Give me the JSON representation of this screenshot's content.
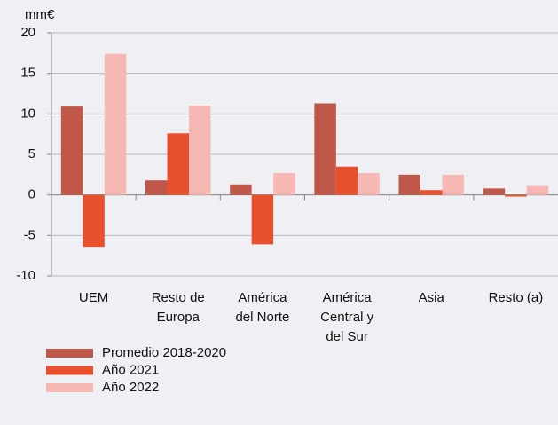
{
  "chart_data": {
    "type": "bar",
    "unit_label": "mm€",
    "categories": [
      "UEM",
      "Resto de\nEuropa",
      "América\ndel Norte",
      "América\nCentral y\ndel Sur",
      "Asia",
      "Resto (a)"
    ],
    "series": [
      {
        "name": "Promedio 2018-2020",
        "color": "#c0584a",
        "values": [
          10.9,
          1.8,
          1.3,
          11.3,
          2.5,
          0.8
        ]
      },
      {
        "name": "Año 2021",
        "color": "#e9512e",
        "values": [
          -6.4,
          7.6,
          -6.1,
          3.5,
          0.6,
          -0.2
        ]
      },
      {
        "name": "Año 2022",
        "color": "#f7b8b3",
        "values": [
          17.4,
          11.0,
          2.7,
          2.7,
          2.5,
          1.1
        ]
      }
    ],
    "ylim": [
      -10,
      20
    ],
    "yticks": [
      -10,
      -5,
      0,
      5,
      10,
      15,
      20
    ],
    "grid": true
  }
}
